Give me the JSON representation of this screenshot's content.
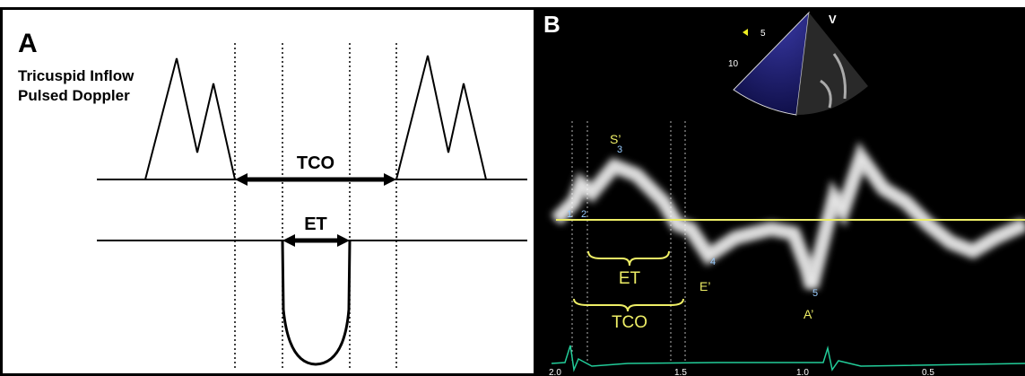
{
  "panel_a": {
    "label": "A",
    "title_lines": [
      "Tricuspid Inflow",
      "Pulsed Doppler"
    ],
    "tco_label": "TCO",
    "et_label": "ET"
  },
  "panel_b": {
    "label": "B",
    "probe_marker": "V",
    "depth_labels": [
      "5",
      "10"
    ],
    "wave_labels": {
      "s": "S’",
      "e": "E’",
      "a": "A’"
    },
    "et_label": "ET",
    "tco_label": "TCO",
    "caliper_labels": [
      "1",
      "2",
      "3",
      "4",
      "5"
    ],
    "time_labels": [
      "2.0",
      "1.5",
      "1.0",
      "0.5"
    ]
  }
}
